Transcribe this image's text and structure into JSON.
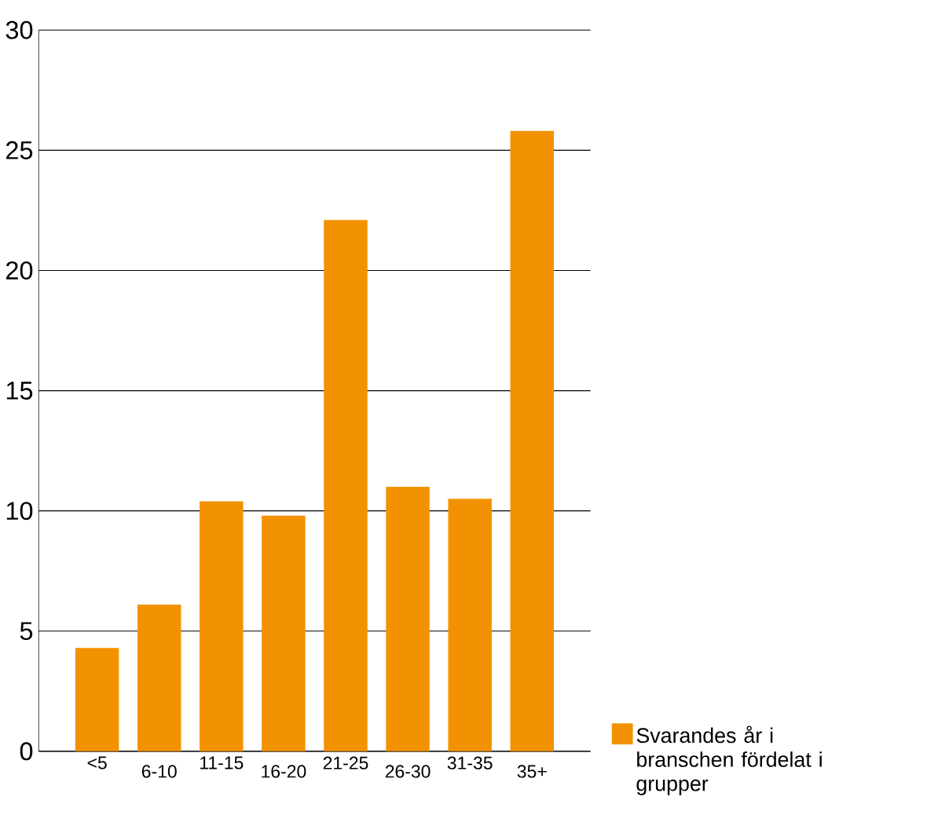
{
  "chart_data": {
    "type": "bar",
    "categories": [
      "<5",
      "6-10",
      "11-15",
      "16-20",
      "21-25",
      "26-30",
      "31-35",
      "35+"
    ],
    "series": [
      {
        "name": "Svarandes år i branschen fördelat i grupper",
        "color": "#f39200",
        "values": [
          4.3,
          6.1,
          10.4,
          9.8,
          22.1,
          11.0,
          10.5,
          25.8
        ]
      }
    ],
    "ylim": [
      0,
      30
    ],
    "yticks": [
      0,
      5,
      10,
      15,
      20,
      25,
      30
    ],
    "grid": "y",
    "legend": "right"
  }
}
